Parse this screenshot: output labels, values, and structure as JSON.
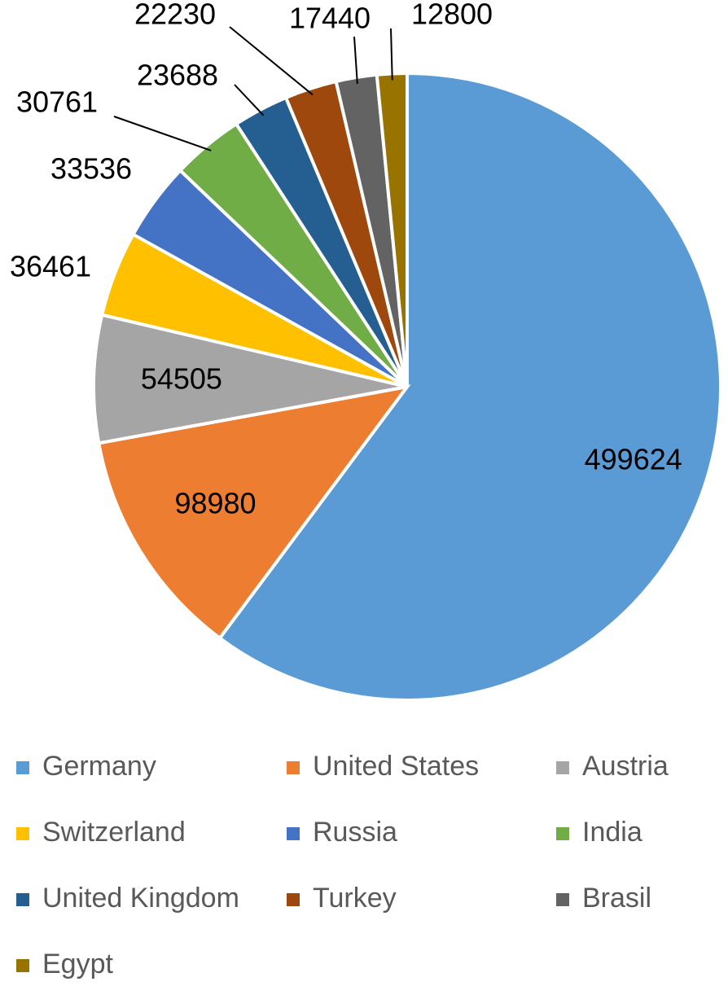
{
  "chart_data": {
    "type": "pie",
    "categories": [
      "Germany",
      "United States",
      "Austria",
      "Switzerland",
      "Russia",
      "India",
      "United Kingdom",
      "Turkey",
      "Brasil",
      "Egypt"
    ],
    "values": [
      499624,
      98980,
      54505,
      36461,
      33536,
      30761,
      23688,
      22230,
      17440,
      12800
    ],
    "colors": [
      "#5b9bd5",
      "#ed7d31",
      "#a5a5a5",
      "#ffc000",
      "#4472c4",
      "#70ad47",
      "#255e91",
      "#9e480e",
      "#636363",
      "#997300"
    ],
    "legend": "bottom"
  }
}
